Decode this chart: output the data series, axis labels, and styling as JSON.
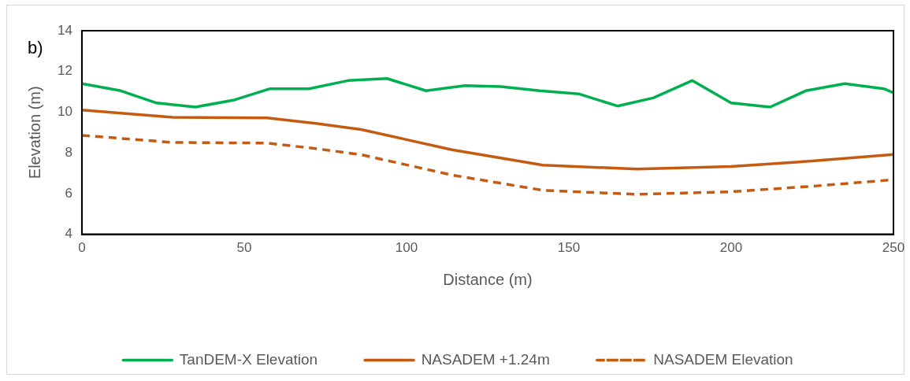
{
  "chart_data": {
    "type": "line",
    "xlabel": "Distance (m)",
    "ylabel": "Elevation (m)",
    "annotations": [
      "b)"
    ],
    "xlim": [
      0,
      250
    ],
    "xticks": [
      0,
      50,
      100,
      150,
      200,
      250
    ],
    "ylim": [
      4,
      14
    ],
    "yticks": [
      4,
      6,
      8,
      10,
      12,
      14
    ],
    "grid": false,
    "legend": "bottom",
    "marker": "none",
    "series": [
      {
        "name": "TanDEM-X Elevation",
        "color": "#00b050",
        "line_style": "solid",
        "x": [
          0,
          12,
          23,
          35,
          47,
          58,
          70,
          82,
          94,
          106,
          118,
          129,
          141,
          153,
          165,
          176,
          188,
          200,
          212,
          223,
          235,
          247,
          250
        ],
        "values": [
          11.4,
          11.05,
          10.45,
          10.25,
          10.6,
          11.15,
          11.15,
          11.55,
          11.65,
          11.05,
          11.3,
          11.25,
          11.05,
          10.9,
          10.3,
          10.7,
          11.55,
          10.45,
          10.25,
          11.05,
          11.4,
          11.15,
          10.95
        ]
      },
      {
        "name": "NASADEM +1.24m",
        "color": "#c55a11",
        "line_style": "solid",
        "x": [
          0,
          12,
          28,
          57,
          72,
          86,
          100,
          114,
          142,
          171,
          200,
          225,
          250
        ],
        "values": [
          10.1,
          9.95,
          9.75,
          9.72,
          9.45,
          9.15,
          8.65,
          8.15,
          7.4,
          7.2,
          7.33,
          7.6,
          7.92
        ]
      },
      {
        "name": "NASADEM Elevation",
        "color": "#c55a11",
        "line_style": "dashed",
        "x": [
          0,
          12,
          28,
          57,
          72,
          86,
          100,
          114,
          142,
          171,
          200,
          225,
          250
        ],
        "values": [
          8.86,
          8.71,
          8.51,
          8.48,
          8.21,
          7.91,
          7.41,
          6.91,
          6.16,
          5.96,
          6.09,
          6.36,
          6.68
        ]
      }
    ]
  }
}
